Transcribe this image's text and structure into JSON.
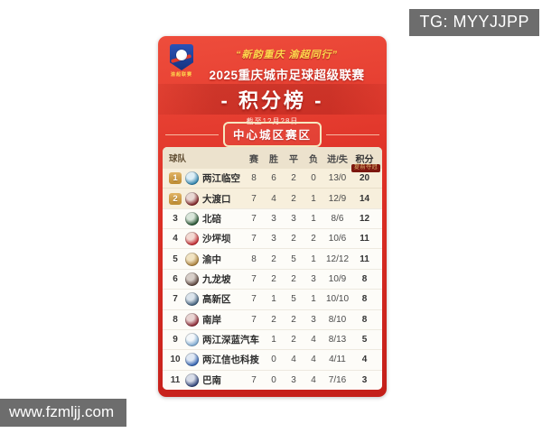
{
  "overlays": {
    "tg_badge": "TG: MYYJJPP",
    "watermark": "www.fzmljj.com"
  },
  "poster": {
    "league_logo_label": "渝超联赛",
    "slogan": "“新韵重庆 渝超同行”",
    "title": "2025重庆城市足球超级联赛",
    "section_title": "- 积分榜 -",
    "as_of": "截至12月28日",
    "division": "中心城区赛区"
  },
  "table": {
    "headers": [
      "球队",
      "赛",
      "胜",
      "平",
      "负",
      "进/失",
      "积分"
    ],
    "champion_tag": "提前夺冠",
    "rows": [
      {
        "rank": "1",
        "name": "两江临空",
        "played": "8",
        "won": "6",
        "drawn": "2",
        "lost": "0",
        "goals": "13/0",
        "points": "20",
        "gold": true,
        "highlight": true,
        "logo": {
          "outer": "#2b80aa",
          "inner": "#ddeef6"
        }
      },
      {
        "rank": "2",
        "name": "大渡口",
        "played": "7",
        "won": "4",
        "drawn": "2",
        "lost": "1",
        "goals": "12/9",
        "points": "14",
        "gold": true,
        "highlight": true,
        "logo": {
          "outer": "#7c1e22",
          "inner": "#e9d8d3"
        }
      },
      {
        "rank": "3",
        "name": "北碚",
        "played": "7",
        "won": "3",
        "drawn": "3",
        "lost": "1",
        "goals": "8/6",
        "points": "12",
        "gold": false,
        "highlight": false,
        "logo": {
          "outer": "#23512f",
          "inner": "#d9e6da"
        }
      },
      {
        "rank": "4",
        "name": "沙坪坝",
        "played": "7",
        "won": "3",
        "drawn": "2",
        "lost": "2",
        "goals": "10/6",
        "points": "11",
        "gold": false,
        "highlight": false,
        "logo": {
          "outer": "#c0272e",
          "inner": "#f3d9d2"
        }
      },
      {
        "rank": "5",
        "name": "渝中",
        "played": "8",
        "won": "2",
        "drawn": "5",
        "lost": "1",
        "goals": "12/12",
        "points": "11",
        "gold": false,
        "highlight": false,
        "logo": {
          "outer": "#a97f3a",
          "inner": "#f1e3c2"
        }
      },
      {
        "rank": "6",
        "name": "九龙坡",
        "played": "7",
        "won": "2",
        "drawn": "2",
        "lost": "3",
        "goals": "10/9",
        "points": "8",
        "gold": false,
        "highlight": false,
        "logo": {
          "outer": "#59423a",
          "inner": "#d8cfc9"
        }
      },
      {
        "rank": "7",
        "name": "高新区",
        "played": "7",
        "won": "1",
        "drawn": "5",
        "lost": "1",
        "goals": "10/10",
        "points": "8",
        "gold": false,
        "highlight": false,
        "logo": {
          "outer": "#3f5d79",
          "inner": "#dbe4ec"
        }
      },
      {
        "rank": "8",
        "name": "南岸",
        "played": "7",
        "won": "2",
        "drawn": "2",
        "lost": "3",
        "goals": "8/10",
        "points": "8",
        "gold": false,
        "highlight": false,
        "logo": {
          "outer": "#8a2531",
          "inner": "#e9d4d2"
        }
      },
      {
        "rank": "9",
        "name": "两江深蓝汽车",
        "played": "7",
        "won": "1",
        "drawn": "2",
        "lost": "4",
        "goals": "8/13",
        "points": "5",
        "gold": false,
        "highlight": false,
        "logo": {
          "outer": "#7aa7cf",
          "inner": "#f3f7fa"
        }
      },
      {
        "rank": "10",
        "name": "两江信也科技",
        "played": "8",
        "won": "0",
        "drawn": "4",
        "lost": "4",
        "goals": "4/11",
        "points": "4",
        "gold": false,
        "highlight": false,
        "logo": {
          "outer": "#2f5fae",
          "inner": "#dfe8f4"
        }
      },
      {
        "rank": "11",
        "name": "巴南",
        "played": "7",
        "won": "0",
        "drawn": "3",
        "lost": "4",
        "goals": "7/16",
        "points": "3",
        "gold": false,
        "highlight": false,
        "logo": {
          "outer": "#2c4076",
          "inner": "#d8dde9"
        }
      }
    ]
  },
  "colors": {
    "card_red_top": "#ee4d3c",
    "card_red_mid": "#dd2f25",
    "card_red_bottom": "#c41f1a",
    "band_overlay": "rgba(110,6,4,0.22)",
    "accent_yellow": "#ffd94e",
    "badge_border": "#f6e7c1",
    "panel_bg": "#fdfcf8",
    "panel_header_bg": "#ece2cd",
    "panel_header_text": "#5f4c30",
    "row_highlight_bg": "#f7efdc",
    "row_divider": "rgba(120,100,60,0.12)",
    "gold_badge_top": "#e0b263",
    "gold_badge_bottom": "#bd8c33",
    "champion_tag_bg": "#7d170f",
    "champion_tag_text": "#eac77b",
    "overlay_gray": "#6d6d6d",
    "shield_blue_top": "#2a52b8",
    "shield_blue_bottom": "#16337f"
  },
  "chart_data": {
    "type": "table",
    "title": "2025重庆城市足球超级联赛 - 积分榜 - 中心城区赛区 (截至12月28日)",
    "columns": [
      "球队",
      "赛",
      "胜",
      "平",
      "负",
      "进/失",
      "积分"
    ],
    "rows": [
      [
        "两江临空",
        8,
        6,
        2,
        0,
        "13/0",
        20
      ],
      [
        "大渡口",
        7,
        4,
        2,
        1,
        "12/9",
        14
      ],
      [
        "北碚",
        7,
        3,
        3,
        1,
        "8/6",
        12
      ],
      [
        "沙坪坝",
        7,
        3,
        2,
        2,
        "10/6",
        11
      ],
      [
        "渝中",
        8,
        2,
        5,
        1,
        "12/12",
        11
      ],
      [
        "九龙坡",
        7,
        2,
        2,
        3,
        "10/9",
        8
      ],
      [
        "高新区",
        7,
        1,
        5,
        1,
        "10/10",
        8
      ],
      [
        "南岸",
        7,
        2,
        2,
        3,
        "8/10",
        8
      ],
      [
        "两江深蓝汽车",
        7,
        1,
        2,
        4,
        "8/13",
        5
      ],
      [
        "两江信也科技",
        8,
        0,
        4,
        4,
        "4/11",
        4
      ],
      [
        "巴南",
        7,
        0,
        3,
        4,
        "7/16",
        3
      ]
    ]
  }
}
